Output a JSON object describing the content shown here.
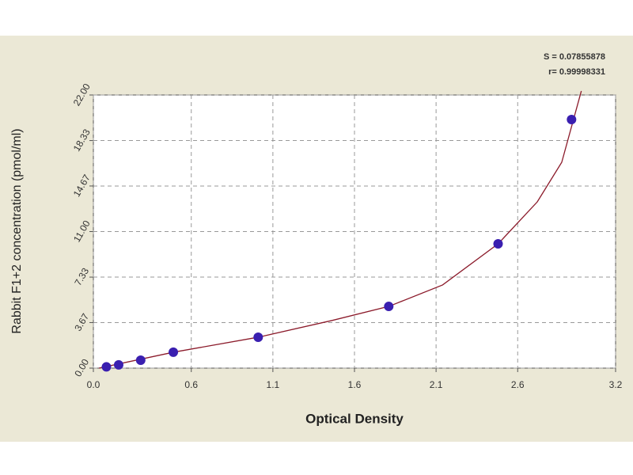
{
  "chart_data": {
    "type": "scatter",
    "x_label": "Optical Density",
    "y_label": "Rabbit F1+2 concentration (pmol/ml)",
    "annotations": [
      "S = 0.07855878",
      "r= 0.99998331"
    ],
    "xlim": [
      0,
      3.2
    ],
    "xticks": [
      {
        "value": 0,
        "label": "0.0"
      },
      0.6,
      1.1,
      1.6,
      2.1,
      2.6,
      3.2
    ],
    "ylim": [
      0,
      22
    ],
    "yticks": [
      {
        "value": 0,
        "label": "0.00"
      },
      3.67,
      7.33,
      {
        "value": 11,
        "label": "11.00"
      },
      14.67,
      18.33,
      {
        "value": 22,
        "label": "22.00"
      }
    ],
    "grid": true,
    "series": [
      {
        "mode": "line",
        "color": "#8b1a2a",
        "x": [
          0.034,
          0.49,
          1.01,
          1.46,
          1.81,
          2.14,
          2.48,
          2.72,
          2.87,
          2.99
        ],
        "values": [
          0,
          1.28,
          2.49,
          3.83,
          4.97,
          6.7,
          10.01,
          13.39,
          16.58,
          22.32
        ]
      },
      {
        "mode": "markers",
        "color": "#3a1fb0",
        "x": [
          0.08,
          0.155,
          0.29,
          0.49,
          1.01,
          1.81,
          2.48,
          2.93
        ],
        "values": [
          0.1,
          0.26,
          0.64,
          1.28,
          2.49,
          4.97,
          10.01,
          20.02
        ]
      }
    ]
  }
}
